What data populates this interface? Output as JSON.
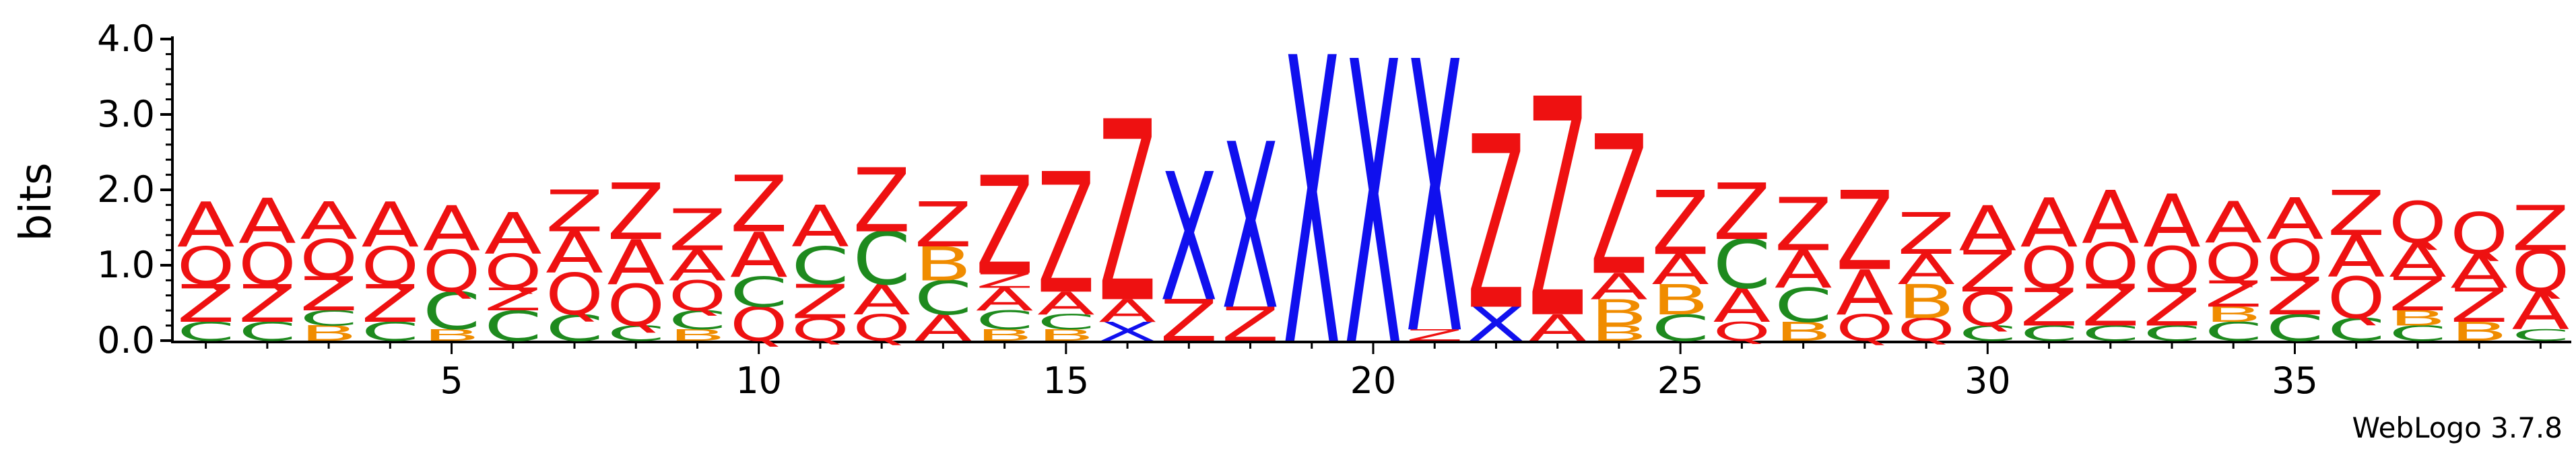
{
  "chart_data": {
    "type": "sequence-logo",
    "ylabel": "bits",
    "ylim": [
      0,
      4.0
    ],
    "y_ticks": [
      "0.0",
      "1.0",
      "2.0",
      "3.0",
      "4.0"
    ],
    "x_ticks": [
      5,
      10,
      15,
      20,
      25,
      30,
      35
    ],
    "watermark": "WebLogo 3.7.8",
    "colors": {
      "A": "#ee1111",
      "Q": "#ee1111",
      "Z": "#ee1111",
      "C": "#1e8a1e",
      "B": "#f08c00",
      "X": "#1010ee"
    },
    "positions": [
      {
        "pos": 1,
        "stack": [
          [
            "C",
            0.25
          ],
          [
            "Z",
            0.5
          ],
          [
            "Q",
            0.5
          ],
          [
            "A",
            0.6
          ]
        ]
      },
      {
        "pos": 2,
        "stack": [
          [
            "C",
            0.25
          ],
          [
            "Z",
            0.5
          ],
          [
            "Q",
            0.55
          ],
          [
            "A",
            0.6
          ]
        ]
      },
      {
        "pos": 3,
        "stack": [
          [
            "B",
            0.2
          ],
          [
            "C",
            0.2
          ],
          [
            "Z",
            0.45
          ],
          [
            "Q",
            0.5
          ],
          [
            "A",
            0.5
          ]
        ]
      },
      {
        "pos": 4,
        "stack": [
          [
            "C",
            0.25
          ],
          [
            "Z",
            0.5
          ],
          [
            "Q",
            0.5
          ],
          [
            "A",
            0.6
          ]
        ]
      },
      {
        "pos": 5,
        "stack": [
          [
            "B",
            0.15
          ],
          [
            "C",
            0.5
          ],
          [
            "Q",
            0.55
          ],
          [
            "A",
            0.6
          ]
        ]
      },
      {
        "pos": 6,
        "stack": [
          [
            "C",
            0.4
          ],
          [
            "Z",
            0.3
          ],
          [
            "Q",
            0.45
          ],
          [
            "A",
            0.55
          ]
        ]
      },
      {
        "pos": 7,
        "stack": [
          [
            "C",
            0.35
          ],
          [
            "Q",
            0.55
          ],
          [
            "A",
            0.55
          ],
          [
            "Z",
            0.55
          ]
        ]
      },
      {
        "pos": 8,
        "stack": [
          [
            "C",
            0.2
          ],
          [
            "Q",
            0.55
          ],
          [
            "A",
            0.6
          ],
          [
            "Z",
            0.75
          ]
        ]
      },
      {
        "pos": 9,
        "stack": [
          [
            "B",
            0.15
          ],
          [
            "C",
            0.25
          ],
          [
            "Q",
            0.4
          ],
          [
            "A",
            0.4
          ],
          [
            "Z",
            0.55
          ]
        ]
      },
      {
        "pos": 10,
        "stack": [
          [
            "Q",
            0.45
          ],
          [
            "C",
            0.4
          ],
          [
            "A",
            0.6
          ],
          [
            "Z",
            0.75
          ]
        ]
      },
      {
        "pos": 11,
        "stack": [
          [
            "Q",
            0.3
          ],
          [
            "Z",
            0.45
          ],
          [
            "C",
            0.5
          ],
          [
            "A",
            0.55
          ]
        ]
      },
      {
        "pos": 12,
        "stack": [
          [
            "Q",
            0.35
          ],
          [
            "A",
            0.4
          ],
          [
            "C",
            0.7
          ],
          [
            "Z",
            0.85
          ]
        ]
      },
      {
        "pos": 13,
        "stack": [
          [
            "A",
            0.35
          ],
          [
            "C",
            0.45
          ],
          [
            "B",
            0.45
          ],
          [
            "Z",
            0.6
          ]
        ]
      },
      {
        "pos": 14,
        "stack": [
          [
            "B",
            0.15
          ],
          [
            "C",
            0.25
          ],
          [
            "A",
            0.3
          ],
          [
            "Z",
            0.2
          ],
          [
            "Z",
            1.3
          ]
        ]
      },
      {
        "pos": 15,
        "stack": [
          [
            "B",
            0.15
          ],
          [
            "C",
            0.2
          ],
          [
            "A",
            0.3
          ],
          [
            "Z",
            1.6
          ]
        ]
      },
      {
        "pos": 16,
        "stack": [
          [
            "X",
            0.25
          ],
          [
            "A",
            0.3
          ],
          [
            "Z",
            2.4
          ]
        ]
      },
      {
        "pos": 17,
        "stack": [
          [
            "Z",
            0.55
          ],
          [
            "X",
            1.7
          ]
        ]
      },
      {
        "pos": 18,
        "stack": [
          [
            "Z",
            0.45
          ],
          [
            "X",
            2.2
          ]
        ]
      },
      {
        "pos": 19,
        "stack": [
          [
            "X",
            3.8
          ]
        ]
      },
      {
        "pos": 20,
        "stack": [
          [
            "X",
            3.75
          ]
        ]
      },
      {
        "pos": 21,
        "stack": [
          [
            "Z",
            0.15
          ],
          [
            "X",
            3.6
          ]
        ]
      },
      {
        "pos": 22,
        "stack": [
          [
            "X",
            0.45
          ],
          [
            "Z",
            2.3
          ]
        ]
      },
      {
        "pos": 23,
        "stack": [
          [
            "A",
            0.35
          ],
          [
            "Z",
            2.9
          ]
        ]
      },
      {
        "pos": 24,
        "stack": [
          [
            "B",
            0.2
          ],
          [
            "B",
            0.35
          ],
          [
            "A",
            0.35
          ],
          [
            "Z",
            1.85
          ]
        ]
      },
      {
        "pos": 25,
        "stack": [
          [
            "C",
            0.35
          ],
          [
            "B",
            0.4
          ],
          [
            "A",
            0.4
          ],
          [
            "Z",
            0.85
          ]
        ]
      },
      {
        "pos": 26,
        "stack": [
          [
            "Q",
            0.25
          ],
          [
            "A",
            0.45
          ],
          [
            "C",
            0.65
          ],
          [
            "Z",
            0.75
          ]
        ]
      },
      {
        "pos": 27,
        "stack": [
          [
            "B",
            0.25
          ],
          [
            "C",
            0.45
          ],
          [
            "A",
            0.5
          ],
          [
            "Z",
            0.7
          ]
        ]
      },
      {
        "pos": 28,
        "stack": [
          [
            "Q",
            0.35
          ],
          [
            "A",
            0.6
          ],
          [
            "Z",
            1.05
          ]
        ]
      },
      {
        "pos": 29,
        "stack": [
          [
            "Q",
            0.3
          ],
          [
            "B",
            0.45
          ],
          [
            "A",
            0.4
          ],
          [
            "Z",
            0.55
          ]
        ]
      },
      {
        "pos": 30,
        "stack": [
          [
            "C",
            0.2
          ],
          [
            "Q",
            0.45
          ],
          [
            "Z",
            0.55
          ],
          [
            "A",
            0.6
          ]
        ]
      },
      {
        "pos": 31,
        "stack": [
          [
            "C",
            0.2
          ],
          [
            "Z",
            0.5
          ],
          [
            "Q",
            0.55
          ],
          [
            "A",
            0.65
          ]
        ]
      },
      {
        "pos": 32,
        "stack": [
          [
            "C",
            0.2
          ],
          [
            "Z",
            0.55
          ],
          [
            "Q",
            0.55
          ],
          [
            "A",
            0.7
          ]
        ]
      },
      {
        "pos": 33,
        "stack": [
          [
            "C",
            0.2
          ],
          [
            "Z",
            0.5
          ],
          [
            "Q",
            0.55
          ],
          [
            "A",
            0.7
          ]
        ]
      },
      {
        "pos": 34,
        "stack": [
          [
            "C",
            0.25
          ],
          [
            "B",
            0.2
          ],
          [
            "Z",
            0.35
          ],
          [
            "Q",
            0.5
          ],
          [
            "A",
            0.55
          ]
        ]
      },
      {
        "pos": 35,
        "stack": [
          [
            "C",
            0.35
          ],
          [
            "Z",
            0.5
          ],
          [
            "Q",
            0.5
          ],
          [
            "A",
            0.55
          ]
        ]
      },
      {
        "pos": 36,
        "stack": [
          [
            "C",
            0.3
          ],
          [
            "Q",
            0.55
          ],
          [
            "A",
            0.55
          ],
          [
            "Z",
            0.6
          ]
        ]
      },
      {
        "pos": 37,
        "stack": [
          [
            "C",
            0.2
          ],
          [
            "B",
            0.2
          ],
          [
            "Z",
            0.45
          ],
          [
            "A",
            0.45
          ],
          [
            "Q",
            0.55
          ]
        ]
      },
      {
        "pos": 38,
        "stack": [
          [
            "B",
            0.25
          ],
          [
            "Z",
            0.45
          ],
          [
            "A",
            0.45
          ],
          [
            "Q",
            0.55
          ]
        ]
      },
      {
        "pos": 39,
        "stack": [
          [
            "C",
            0.15
          ],
          [
            "A",
            0.5
          ],
          [
            "Q",
            0.55
          ],
          [
            "Z",
            0.6
          ]
        ]
      }
    ]
  }
}
